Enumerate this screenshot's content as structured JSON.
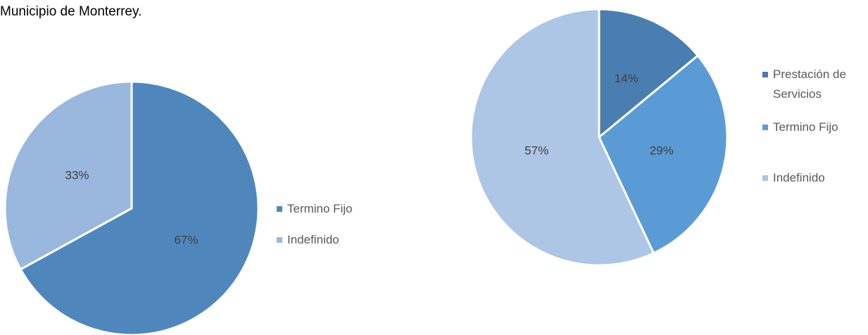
{
  "caption": "Municipio de Monterrey.",
  "chart_data": [
    {
      "type": "pie",
      "categories": [
        "Termino Fijo",
        "Indefinido"
      ],
      "values": [
        67,
        33
      ],
      "value_labels": [
        "67%",
        "33%"
      ],
      "colors": [
        "#4f87bd",
        "#9ab7de"
      ]
    },
    {
      "type": "pie",
      "categories": [
        "Prestación de Servicios",
        "Termino Fijo",
        "Indefinido"
      ],
      "values": [
        14,
        29,
        57
      ],
      "value_labels": [
        "14%",
        "29%",
        "57%"
      ],
      "colors": [
        "#4a7db0",
        "#5b9bd5",
        "#adc6e6"
      ]
    }
  ]
}
